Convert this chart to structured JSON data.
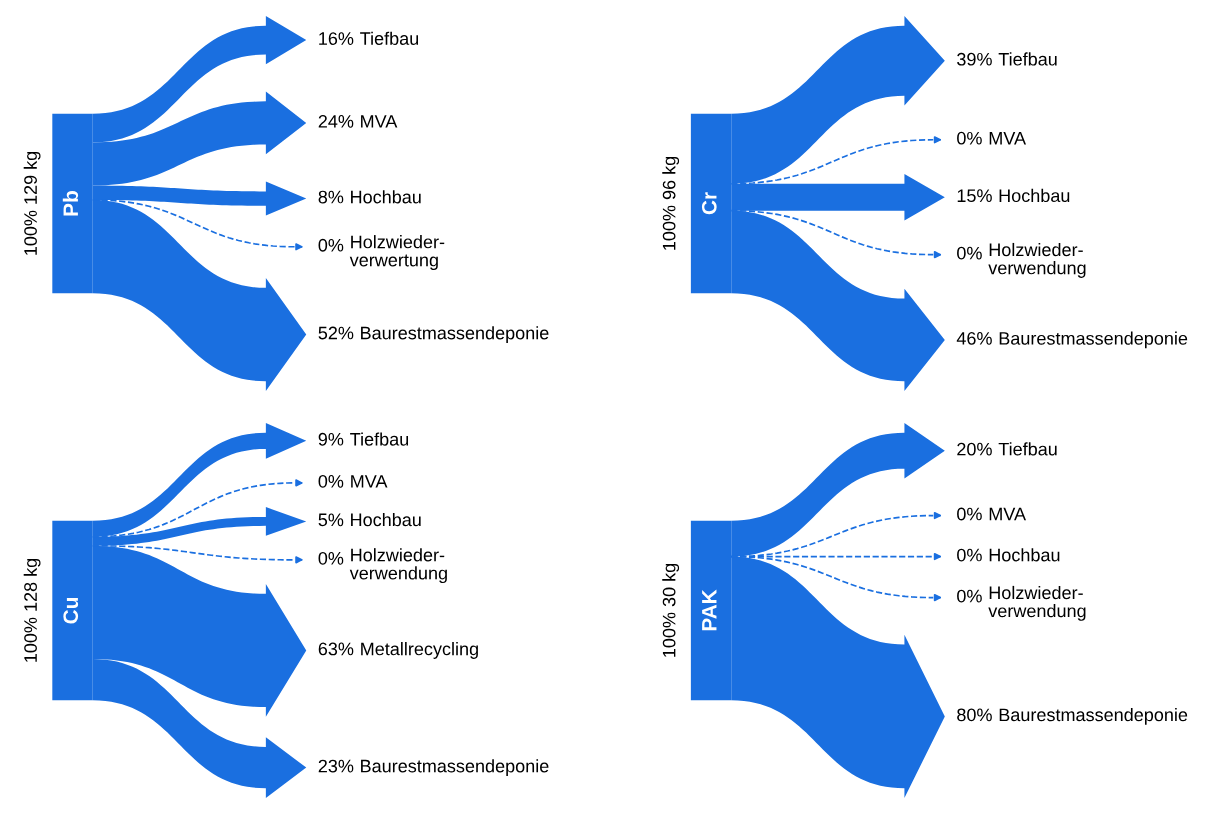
{
  "chart_data": [
    {
      "type": "other",
      "title": "Pb",
      "ylabel": "100% 129 kg",
      "color": "#1a6fe0",
      "categories": [
        "Tiefbau",
        "MVA",
        "Hochbau",
        "Holzwieder-\nverwertung",
        "Baurestmassendeponie"
      ],
      "values": [
        16,
        24,
        8,
        0,
        52
      ],
      "value_labels": [
        "16%",
        "24%",
        "8%",
        "0%",
        "52%"
      ]
    },
    {
      "type": "other",
      "title": "Cr",
      "ylabel": "100% 96 kg",
      "color": "#1a6fe0",
      "categories": [
        "Tiefbau",
        "MVA",
        "Hochbau",
        "Holzwieder-\nverwendung",
        "Baurestmassendeponie"
      ],
      "values": [
        39,
        0,
        15,
        0,
        46
      ],
      "value_labels": [
        "39%",
        "0%",
        "15%",
        "0%",
        "46%"
      ]
    },
    {
      "type": "other",
      "title": "Cu",
      "ylabel": "100% 128 kg",
      "color": "#1a6fe0",
      "categories": [
        "Tiefbau",
        "MVA",
        "Hochbau",
        "Holzwieder-\nverwendung",
        "Metallrecycling",
        "Baurestmassendeponie"
      ],
      "values": [
        9,
        0,
        5,
        0,
        63,
        23
      ],
      "value_labels": [
        "9%",
        "0%",
        "5%",
        "0%",
        "63%",
        "23%"
      ]
    },
    {
      "type": "other",
      "title": "PAK",
      "ylabel": "100% 30 kg",
      "color": "#1a6fe0",
      "categories": [
        "Tiefbau",
        "MVA",
        "Hochbau",
        "Holzwieder-\nverwendung",
        "Baurestmassendeponie"
      ],
      "values": [
        20,
        0,
        0,
        0,
        80
      ],
      "value_labels": [
        "20%",
        "0%",
        "0%",
        "0%",
        "80%"
      ]
    }
  ]
}
